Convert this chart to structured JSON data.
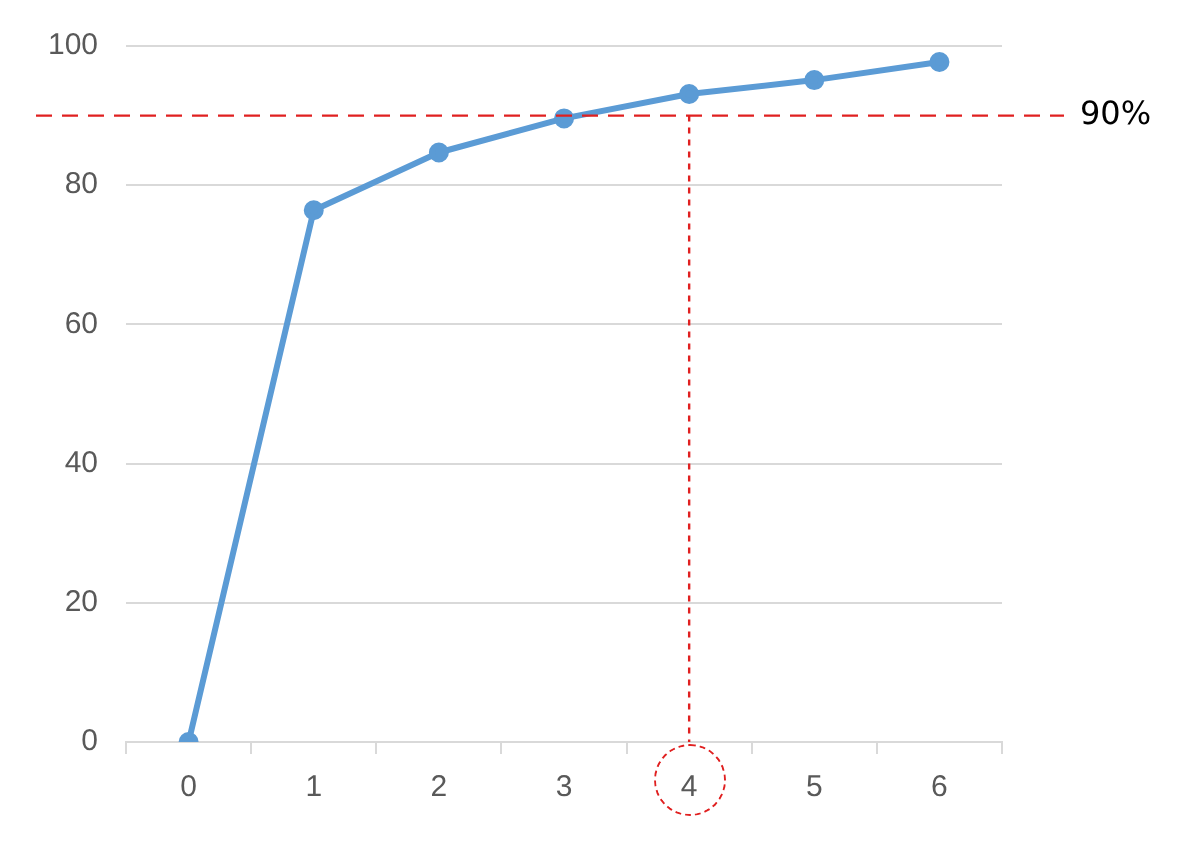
{
  "chart_data": {
    "type": "line",
    "categories": [
      "0",
      "1",
      "2",
      "3",
      "4",
      "5",
      "6"
    ],
    "series": [
      {
        "color": "#5b9bd5",
        "values": [
          0,
          76.4,
          84.7,
          89.6,
          93.1,
          95.1,
          97.7
        ]
      }
    ],
    "ylim": [
      0,
      100
    ],
    "yticks": [
      0,
      20,
      40,
      60,
      80,
      100
    ],
    "grid": "y",
    "legend": false,
    "marker": "circle",
    "line_style": "solid",
    "ref_lines": [
      {
        "axis": "y",
        "value": 90,
        "label": "90%",
        "color": "#e02020",
        "line_style": "dashed"
      },
      {
        "axis": "x",
        "value": "4",
        "label": null,
        "color": "#e02020",
        "line_style": "dotted"
      }
    ]
  }
}
